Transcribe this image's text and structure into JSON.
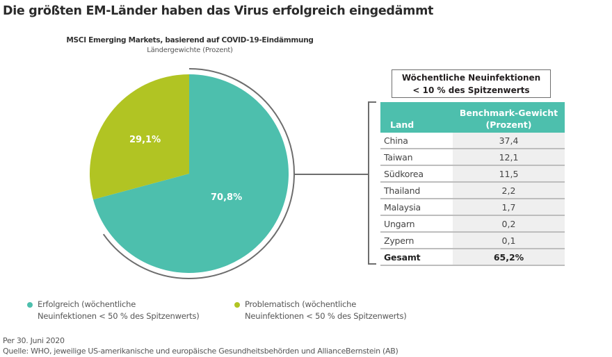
{
  "title": "Die größten EM-Länder haben das Virus erfolgreich eingedämmt",
  "colors": {
    "success": "#4dbfad",
    "problematic": "#b1c423",
    "connector": "#6d6d6d",
    "table_value_bg": "#efefef"
  },
  "chart_data": [
    {
      "type": "pie",
      "title": "MSCI Emerging Markets, basierend auf COVID-19-Eindämmung",
      "subtitle": "Ländergewichte (Prozent)",
      "categories": [
        "Erfolgreich (wöchentliche Neuinfektionen < 50 % des Spitzenwerts)",
        "Problematisch (wöchentliche Neuinfektionen < 50 % des Spitzenwerts)"
      ],
      "values": [
        70.8,
        29.1
      ],
      "labels": [
        "70,8%",
        "29,1%"
      ],
      "colors": [
        "#4dbfad",
        "#b1c423"
      ],
      "legend_position": "bottom",
      "highlight_arc": {
        "from_pct": 0,
        "to_pct": 65.2,
        "links_to": "table"
      }
    },
    {
      "type": "table",
      "title": "Wöchentliche Neuinfektionen < 10 % des Spitzenwerts",
      "columns": [
        "Land",
        "Benchmark-Gewicht (Prozent)"
      ],
      "rows": [
        [
          "China",
          "37,4"
        ],
        [
          "Taiwan",
          "12,1"
        ],
        [
          "Südkorea",
          "11,5"
        ],
        [
          "Thailand",
          "2,2"
        ],
        [
          "Malaysia",
          "1,7"
        ],
        [
          "Ungarn",
          "0,2"
        ],
        [
          "Zypern",
          "0,1"
        ],
        [
          "Gesamt",
          "65,2%"
        ]
      ]
    }
  ],
  "pie": {
    "title": "MSCI Emerging Markets, basierend auf COVID-19-Eindämmung",
    "subtitle": "Ländergewichte (Prozent)",
    "label_success": "70,8%",
    "label_problematic": "29,1%"
  },
  "table": {
    "box_title_line1": "Wöchentliche Neuinfektionen",
    "box_title_line2": "< 10 % des Spitzenwerts",
    "header_land": "Land",
    "header_value_line1": "Benchmark-Gewicht",
    "header_value_line2": "(Prozent)",
    "rows": [
      {
        "land": "China",
        "value": "37,4"
      },
      {
        "land": "Taiwan",
        "value": "12,1"
      },
      {
        "land": "Südkorea",
        "value": "11,5"
      },
      {
        "land": "Thailand",
        "value": "2,2"
      },
      {
        "land": "Malaysia",
        "value": "1,7"
      },
      {
        "land": "Ungarn",
        "value": "0,2"
      },
      {
        "land": "Zypern",
        "value": "0,1"
      }
    ],
    "total": {
      "land": "Gesamt",
      "value": "65,2%"
    }
  },
  "legend": [
    {
      "line1": "Erfolgreich (wöchentliche",
      "line2": "Neuinfektionen < 50 % des Spitzenwerts)"
    },
    {
      "line1": "Problematisch (wöchentliche",
      "line2": "Neuinfektionen < 50 % des Spitzenwerts)"
    }
  ],
  "footer": {
    "date": "Per 30. Juni 2020",
    "source": "Quelle: WHO, jeweilige US-amerikanische und europäische Gesundheitsbehörden und AllianceBernstein (AB)"
  }
}
